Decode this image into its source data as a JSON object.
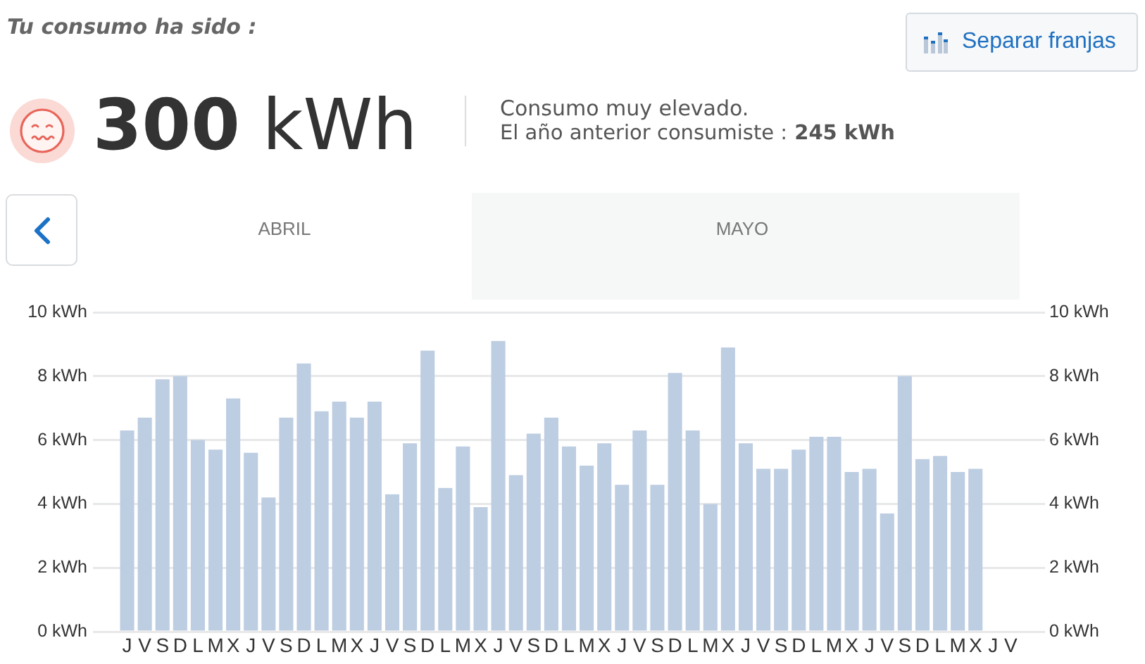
{
  "chart_data": {
    "type": "bar",
    "title": "Tu consumo ha sido :",
    "annotations": [
      "300 kWh",
      "Consumo muy elevado.",
      "El año anterior consumiste : 245 kWh",
      "Separar franjas",
      "ABRIL",
      "MAYO"
    ],
    "categories": [
      "J",
      "V",
      "S",
      "D",
      "L",
      "M",
      "X",
      "J",
      "V",
      "S",
      "D",
      "L",
      "M",
      "X",
      "J",
      "V",
      "S",
      "D",
      "L",
      "M",
      "X",
      "J",
      "V",
      "S",
      "D",
      "L",
      "M",
      "X",
      "J",
      "V",
      "S",
      "D",
      "L",
      "M",
      "X",
      "J",
      "V",
      "S",
      "D",
      "L",
      "M",
      "X",
      "J",
      "V",
      "S",
      "D",
      "L",
      "M",
      "X",
      "J",
      "V"
    ],
    "values": [
      6.3,
      6.7,
      7.9,
      8.0,
      6.0,
      5.7,
      7.3,
      5.6,
      4.2,
      6.7,
      8.4,
      6.9,
      7.2,
      6.7,
      7.2,
      4.3,
      5.9,
      8.8,
      4.5,
      5.8,
      3.9,
      9.1,
      4.9,
      6.2,
      6.7,
      5.8,
      5.2,
      5.9,
      4.6,
      6.3,
      4.6,
      8.1,
      6.3,
      4.0,
      8.9,
      5.9,
      5.1,
      5.1,
      5.7,
      6.1,
      6.1,
      5.0,
      5.1,
      3.7,
      8.0,
      5.4,
      5.5,
      5.0,
      5.1,
      null,
      null
    ],
    "color": "#bdcde2",
    "ylim": [
      0,
      10
    ],
    "yticks": [
      {
        "value": 0,
        "label": "0 kWh"
      },
      {
        "value": 2,
        "label": "2 kWh"
      },
      {
        "value": 4,
        "label": "4 kWh"
      },
      {
        "value": 6,
        "label": "6 kWh"
      },
      {
        "value": 8,
        "label": "8 kWh"
      },
      {
        "value": 10,
        "label": "10 kWh"
      }
    ],
    "y2lim": [
      0,
      10
    ],
    "y2ticks": [
      {
        "value": 0,
        "label": "0 kWh"
      },
      {
        "value": 2,
        "label": "2 kWh"
      },
      {
        "value": 4,
        "label": "4 kWh"
      },
      {
        "value": 6,
        "label": "6 kWh"
      },
      {
        "value": 8,
        "label": "8 kWh"
      },
      {
        "value": 10,
        "label": "10 kWh"
      }
    ],
    "grid": "y",
    "legend": false
  }
}
